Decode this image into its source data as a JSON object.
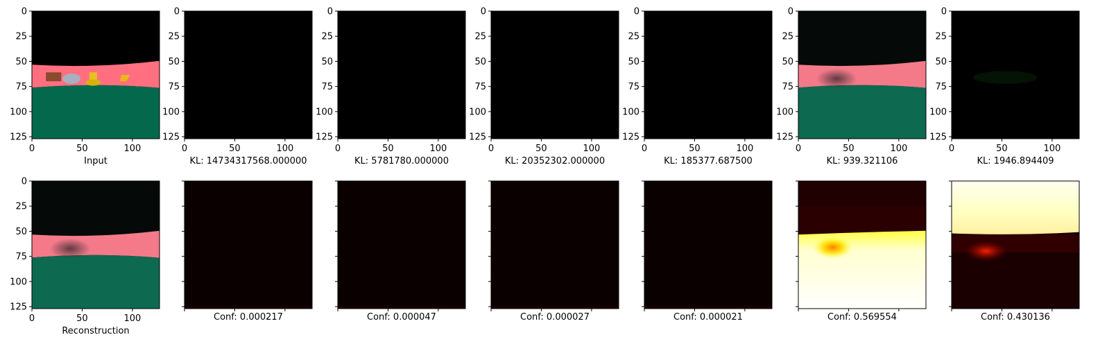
{
  "figure": {
    "rows": [
      {
        "panels": [
          {
            "id": "input",
            "label": "Input",
            "kind": "image",
            "content": "input-scene"
          },
          {
            "id": "s1",
            "label": "KL: 14734317568.000000",
            "kind": "image",
            "content": "black"
          },
          {
            "id": "s2",
            "label": "KL: 5781780.000000",
            "kind": "image",
            "content": "black"
          },
          {
            "id": "s3",
            "label": "KL: 20352302.000000",
            "kind": "image",
            "content": "black"
          },
          {
            "id": "s4",
            "label": "KL: 185377.687500",
            "kind": "image",
            "content": "black"
          },
          {
            "id": "s5",
            "label": "KL: 939.321106",
            "kind": "image",
            "content": "faded-scene"
          },
          {
            "id": "s6",
            "label": "KL: 1946.894409",
            "kind": "image",
            "content": "near-black"
          }
        ]
      },
      {
        "panels": [
          {
            "id": "recon",
            "label": "Reconstruction",
            "kind": "image",
            "content": "faded-scene"
          },
          {
            "id": "c1",
            "label": "Conf: 0.000217",
            "kind": "heatmap",
            "content": "dark"
          },
          {
            "id": "c2",
            "label": "Conf: 0.000047",
            "kind": "heatmap",
            "content": "dark"
          },
          {
            "id": "c3",
            "label": "Conf: 0.000027",
            "kind": "heatmap",
            "content": "dark"
          },
          {
            "id": "c4",
            "label": "Conf: 0.000021",
            "kind": "heatmap",
            "content": "dark"
          },
          {
            "id": "c5",
            "label": "Conf: 0.569554",
            "kind": "heatmap",
            "content": "bright-bottom"
          },
          {
            "id": "c6",
            "label": "Conf: 0.430136",
            "kind": "heatmap",
            "content": "bright-top"
          }
        ]
      }
    ],
    "colors": {
      "sky": "#000000",
      "wall": "#ff6f80",
      "floor": "#04694c",
      "heat_dark": "#0a0000",
      "heat_hot": "#ffff80",
      "heat_mid": "#ff3000"
    }
  },
  "chart_data": {
    "type": "heatmap",
    "grid": {
      "rows": 2,
      "cols": 7
    },
    "x_ticks": [
      0,
      50,
      100
    ],
    "y_ticks": [
      0,
      25,
      50,
      75,
      100,
      125
    ],
    "xlim": [
      0,
      127
    ],
    "ylim": [
      127,
      0
    ],
    "captions_row1": [
      "Input",
      "KL: 14734317568.000000",
      "KL: 5781780.000000",
      "KL: 20352302.000000",
      "KL: 185377.687500",
      "KL: 939.321106",
      "KL: 1946.894409"
    ],
    "captions_row2": [
      "Reconstruction",
      "Conf: 0.000217",
      "Conf: 0.000047",
      "Conf: 0.000027",
      "Conf: 0.000021",
      "Conf: 0.569554",
      "Conf: 0.430136"
    ],
    "kl_values": [
      14734317568.0,
      5781780.0,
      20352302.0,
      185377.6875,
      939.321106,
      1946.894409
    ],
    "conf_values": [
      0.000217,
      4.7e-05,
      2.7e-05,
      2.1e-05,
      0.569554,
      0.430136
    ]
  }
}
